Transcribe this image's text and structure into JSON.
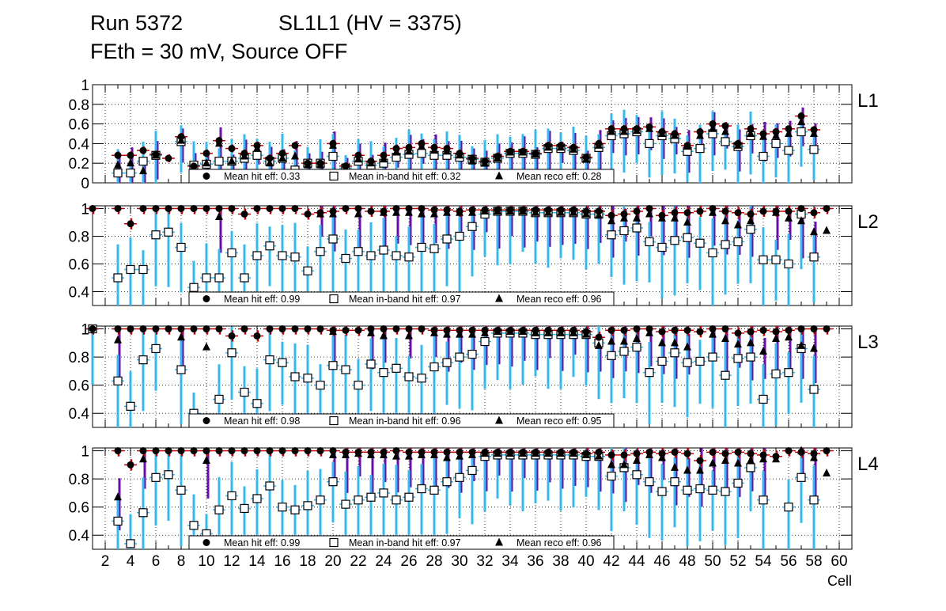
{
  "header": {
    "run": "Run 5372",
    "chamber": "SL1L1 (HV = 3375)",
    "conditions": "FEth = 30 mV, Source OFF"
  },
  "chart_data": {
    "type": "scatter",
    "xlabel": "Cell",
    "x_range": [
      1,
      61
    ],
    "x_ticks": [
      "2",
      "4",
      "6",
      "8",
      "10",
      "12",
      "14",
      "16",
      "18",
      "20",
      "22",
      "24",
      "26",
      "28",
      "30",
      "32",
      "34",
      "36",
      "38",
      "40",
      "42",
      "44",
      "46",
      "48",
      "50",
      "52",
      "54",
      "56",
      "58",
      "60"
    ],
    "legend_labels": {
      "hit": "Mean hit  eff:",
      "inband": "Mean in-band hit eff:",
      "reco": "Mean reco eff:"
    },
    "colors": {
      "hit_err": "#cc0000",
      "inband_err": "#33bbee",
      "reco_err": "#6a0dad",
      "grid": "#000000"
    },
    "panels": [
      {
        "name": "L1",
        "ylim": [
          0,
          1
        ],
        "yticks": [
          "0",
          "0.2",
          "0.4",
          "0.6",
          "0.8",
          "1"
        ],
        "means": {
          "hit": "0.33",
          "inband": "0.32",
          "reco": "0.28"
        },
        "hit": [
          null,
          null,
          0.28,
          0.28,
          0.33,
          0.29,
          0.25,
          0.47,
          0.17,
          0.3,
          0.43,
          0.35,
          0.3,
          0.38,
          0.25,
          0.3,
          0.38,
          0.2,
          0.2,
          0.4,
          0.17,
          0.28,
          0.22,
          0.28,
          0.35,
          0.36,
          0.4,
          0.36,
          0.35,
          0.3,
          0.25,
          0.22,
          0.27,
          0.32,
          0.32,
          0.3,
          0.38,
          0.38,
          0.36,
          0.26,
          0.4,
          0.55,
          0.55,
          0.55,
          0.57,
          0.52,
          0.5,
          0.38,
          0.52,
          0.6,
          0.58,
          0.4,
          0.55,
          0.5,
          0.52,
          0.55,
          0.68,
          0.54,
          null,
          null
        ],
        "inband": [
          null,
          null,
          0.1,
          0.1,
          0.22,
          0.28,
          null,
          0.42,
          0.18,
          0.19,
          0.22,
          0.22,
          0.25,
          0.28,
          0.22,
          0.25,
          0.13,
          0.2,
          0.2,
          0.27,
          0.15,
          0.22,
          0.18,
          0.2,
          0.26,
          0.29,
          0.3,
          0.28,
          0.28,
          0.26,
          0.24,
          0.21,
          0.25,
          0.3,
          0.3,
          0.29,
          0.35,
          0.35,
          0.33,
          0.25,
          0.36,
          0.48,
          0.5,
          0.52,
          0.4,
          0.48,
          0.45,
          0.32,
          0.35,
          0.5,
          0.42,
          0.37,
          0.48,
          0.27,
          0.4,
          0.33,
          0.52,
          0.34,
          null,
          null
        ],
        "reco": [
          null,
          null,
          0.18,
          0.2,
          0.12,
          0.28,
          null,
          0.43,
          0.15,
          0.2,
          0.4,
          0.22,
          0.27,
          0.35,
          0.2,
          0.25,
          0.27,
          0.18,
          0.18,
          0.38,
          0.14,
          0.24,
          0.2,
          0.24,
          0.31,
          0.32,
          0.37,
          0.33,
          0.32,
          0.28,
          0.22,
          0.2,
          0.25,
          0.31,
          0.31,
          0.29,
          0.36,
          0.36,
          0.34,
          0.24,
          0.38,
          0.52,
          0.52,
          0.53,
          0.55,
          0.5,
          0.48,
          0.37,
          0.48,
          0.55,
          0.52,
          0.38,
          0.5,
          0.47,
          0.48,
          0.5,
          0.62,
          0.5,
          null,
          null
        ]
      },
      {
        "name": "L2",
        "ylim": [
          0.3,
          1.02
        ],
        "yticks": [
          "0.4",
          "0.6",
          "0.8",
          "1"
        ],
        "means": {
          "hit": "0.99",
          "inband": "0.97",
          "reco": "0.96"
        },
        "hit": [
          1.0,
          null,
          1.0,
          0.89,
          1.0,
          1.0,
          1.0,
          1.0,
          1.0,
          1.0,
          1.0,
          1.0,
          0.96,
          1.0,
          1.0,
          1.0,
          1.0,
          0.96,
          0.97,
          0.98,
          1.0,
          1.0,
          0.98,
          0.98,
          1.0,
          1.0,
          1.0,
          0.99,
          0.99,
          0.98,
          0.99,
          0.99,
          0.99,
          0.99,
          0.99,
          0.99,
          0.99,
          0.99,
          0.99,
          0.98,
          0.98,
          0.95,
          0.96,
          0.98,
          1.0,
          0.95,
          0.97,
          0.97,
          0.98,
          1.0,
          0.98,
          0.97,
          0.96,
          0.98,
          0.98,
          0.98,
          1.0,
          0.97,
          1.0,
          null
        ],
        "inband": [
          null,
          null,
          0.5,
          0.56,
          0.56,
          0.81,
          0.83,
          0.72,
          0.43,
          0.5,
          0.5,
          0.68,
          0.5,
          0.66,
          0.73,
          0.66,
          0.65,
          0.55,
          0.69,
          0.78,
          0.64,
          0.69,
          0.66,
          0.7,
          0.66,
          0.65,
          0.72,
          0.71,
          0.78,
          0.8,
          0.87,
          0.96,
          0.98,
          0.98,
          0.98,
          0.97,
          0.97,
          0.97,
          0.97,
          0.96,
          0.96,
          0.81,
          0.84,
          0.86,
          0.76,
          0.72,
          0.77,
          0.79,
          0.75,
          0.68,
          0.74,
          0.76,
          0.85,
          0.63,
          0.63,
          0.6,
          0.96,
          0.65,
          null,
          null
        ],
        "reco": [
          null,
          null,
          null,
          null,
          null,
          null,
          null,
          null,
          null,
          null,
          0.94,
          null,
          null,
          null,
          null,
          null,
          null,
          null,
          0.96,
          0.96,
          null,
          0.96,
          null,
          0.97,
          0.97,
          0.97,
          0.96,
          0.96,
          0.97,
          0.97,
          0.97,
          0.98,
          0.98,
          0.98,
          0.98,
          0.97,
          0.97,
          0.97,
          0.97,
          0.96,
          0.95,
          0.91,
          0.93,
          0.93,
          0.96,
          0.93,
          0.93,
          0.9,
          null,
          0.97,
          0.91,
          0.88,
          0.91,
          null,
          0.97,
          0.93,
          0.91,
          0.83,
          0.84,
          null
        ]
      },
      {
        "name": "L3",
        "ylim": [
          0.3,
          1.02
        ],
        "yticks": [
          "0.4",
          "0.6",
          "0.8",
          "1"
        ],
        "means": {
          "hit": "0.98",
          "inband": "0.96",
          "reco": "0.95"
        },
        "hit": [
          1.0,
          null,
          1.0,
          1.0,
          1.0,
          1.0,
          1.0,
          1.0,
          1.0,
          1.0,
          1.0,
          0.95,
          1.0,
          0.95,
          1.0,
          1.0,
          1.0,
          1.0,
          1.0,
          0.99,
          0.99,
          0.99,
          1.0,
          1.0,
          1.0,
          1.0,
          1.0,
          0.99,
          0.99,
          0.99,
          0.99,
          0.99,
          0.99,
          0.99,
          0.99,
          0.99,
          0.99,
          0.99,
          0.99,
          0.98,
          0.94,
          0.99,
          0.99,
          1.0,
          1.0,
          0.98,
          0.99,
          0.99,
          0.98,
          1.0,
          1.0,
          0.97,
          0.98,
          0.99,
          0.98,
          0.99,
          1.0,
          1.0,
          1.0,
          null
        ],
        "inband": [
          1.0,
          null,
          0.63,
          0.45,
          0.78,
          0.86,
          null,
          0.71,
          0.4,
          null,
          0.5,
          0.83,
          0.55,
          0.47,
          0.78,
          0.76,
          0.66,
          0.65,
          0.6,
          0.74,
          0.71,
          0.6,
          0.75,
          0.69,
          0.72,
          0.66,
          0.65,
          0.73,
          0.76,
          0.8,
          0.82,
          0.91,
          0.97,
          0.97,
          0.97,
          0.96,
          0.96,
          0.96,
          0.96,
          0.96,
          0.9,
          0.81,
          0.84,
          0.87,
          0.69,
          0.77,
          0.83,
          0.76,
          0.77,
          0.8,
          0.67,
          0.79,
          0.8,
          0.5,
          0.68,
          0.69,
          0.86,
          0.57,
          null,
          null
        ],
        "reco": [
          null,
          null,
          0.92,
          null,
          null,
          null,
          null,
          0.94,
          null,
          0.87,
          null,
          null,
          null,
          null,
          null,
          null,
          null,
          null,
          null,
          0.98,
          null,
          null,
          0.97,
          0.95,
          null,
          0.95,
          null,
          0.97,
          0.96,
          0.96,
          0.96,
          0.97,
          0.98,
          0.98,
          0.98,
          0.97,
          0.97,
          0.97,
          0.97,
          0.96,
          0.88,
          0.91,
          0.91,
          0.93,
          0.97,
          0.9,
          0.9,
          0.87,
          null,
          0.96,
          0.93,
          0.89,
          0.9,
          0.84,
          0.93,
          0.94,
          0.88,
          0.86,
          null,
          null
        ]
      },
      {
        "name": "L4",
        "ylim": [
          0.3,
          1.02
        ],
        "yticks": [
          "0.4",
          "0.6",
          "0.8",
          "1"
        ],
        "means": {
          "hit": "0.99",
          "inband": "0.97",
          "reco": "0.96"
        },
        "hit": [
          null,
          null,
          1.0,
          0.9,
          1.0,
          1.0,
          1.0,
          1.0,
          1.0,
          1.0,
          1.0,
          1.0,
          1.0,
          1.0,
          1.0,
          1.0,
          1.0,
          1.0,
          1.0,
          1.0,
          0.99,
          0.99,
          0.99,
          0.99,
          1.0,
          0.99,
          0.99,
          0.99,
          0.99,
          0.99,
          0.99,
          0.99,
          0.99,
          0.99,
          0.99,
          0.99,
          0.99,
          0.99,
          0.99,
          0.98,
          0.99,
          0.97,
          0.97,
          0.98,
          0.99,
          0.98,
          0.99,
          0.98,
          0.93,
          0.99,
          0.98,
          0.99,
          0.98,
          0.97,
          0.96,
          1.0,
          0.99,
          0.98,
          1.0,
          null
        ],
        "inband": [
          null,
          null,
          0.5,
          0.34,
          0.56,
          0.81,
          0.83,
          0.72,
          0.47,
          0.41,
          0.58,
          0.68,
          0.59,
          0.66,
          0.75,
          0.6,
          0.58,
          0.61,
          0.65,
          0.78,
          0.62,
          0.65,
          0.67,
          0.7,
          0.65,
          0.67,
          0.73,
          0.72,
          0.78,
          0.81,
          0.86,
          0.96,
          0.97,
          0.97,
          0.97,
          0.97,
          0.97,
          0.97,
          0.97,
          0.96,
          0.96,
          0.82,
          0.88,
          0.83,
          0.78,
          0.71,
          0.78,
          0.72,
          0.73,
          0.72,
          0.71,
          0.77,
          0.88,
          0.65,
          null,
          0.6,
          0.81,
          0.65,
          null,
          null
        ],
        "reco": [
          null,
          null,
          0.67,
          null,
          0.94,
          null,
          null,
          null,
          null,
          0.93,
          null,
          null,
          null,
          null,
          null,
          null,
          null,
          null,
          null,
          0.97,
          0.97,
          0.98,
          0.97,
          0.97,
          0.96,
          0.96,
          0.97,
          0.97,
          0.95,
          0.96,
          0.97,
          0.98,
          0.98,
          0.98,
          0.98,
          0.98,
          0.98,
          0.98,
          0.98,
          0.97,
          0.96,
          0.9,
          0.9,
          0.93,
          0.97,
          0.95,
          0.88,
          0.86,
          0.86,
          0.91,
          0.93,
          0.91,
          0.93,
          0.94,
          0.94,
          null,
          1.0,
          0.95,
          0.84,
          null
        ]
      }
    ]
  }
}
